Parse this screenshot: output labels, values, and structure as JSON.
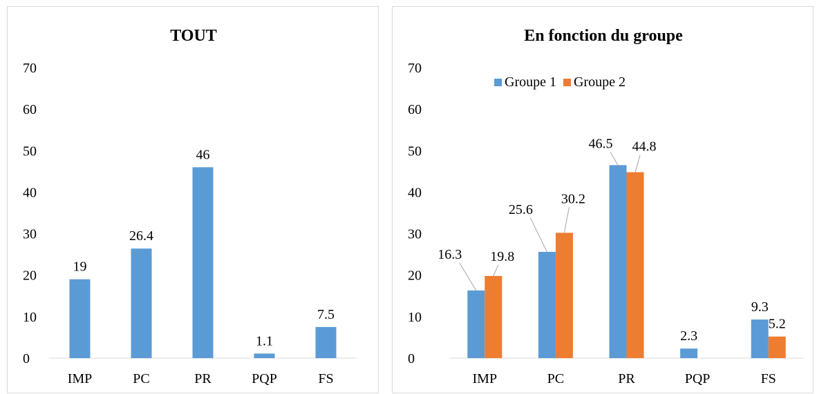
{
  "chart_data": [
    {
      "type": "bar",
      "title": "TOUT",
      "categories": [
        "IMP",
        "PC",
        "PR",
        "PQP",
        "FS"
      ],
      "values": [
        19,
        26.4,
        46,
        1.1,
        7.5
      ],
      "value_labels": [
        "19",
        "26.4",
        "46",
        "1.1",
        "7.5"
      ],
      "ylim": [
        0,
        70
      ],
      "yticks": [
        "0",
        "10",
        "20",
        "30",
        "40",
        "50",
        "60",
        "70"
      ],
      "xlabel": "",
      "ylabel": "",
      "grid": false,
      "legend": "none",
      "colors": [
        "#5b9bd5"
      ]
    },
    {
      "type": "bar",
      "title": "En fonction du groupe",
      "categories": [
        "IMP",
        "PC",
        "PR",
        "PQP",
        "FS"
      ],
      "series": [
        {
          "name": "Groupe 1",
          "values": [
            16.3,
            25.6,
            46.5,
            2.3,
            9.3
          ],
          "value_labels": [
            "16.3",
            "25.6",
            "46.5",
            "2.3",
            "9.3"
          ]
        },
        {
          "name": "Groupe 2",
          "values": [
            19.8,
            30.2,
            44.8,
            null,
            5.2
          ],
          "value_labels": [
            "19.8",
            "30.2",
            "44.8",
            "",
            "5.2"
          ]
        }
      ],
      "ylim": [
        0,
        70
      ],
      "yticks": [
        "0",
        "10",
        "20",
        "30",
        "40",
        "50",
        "60",
        "70"
      ],
      "xlabel": "",
      "ylabel": "",
      "grid": false,
      "legend": "top-right",
      "colors": [
        "#5b9bd5",
        "#ed7d31"
      ]
    }
  ]
}
